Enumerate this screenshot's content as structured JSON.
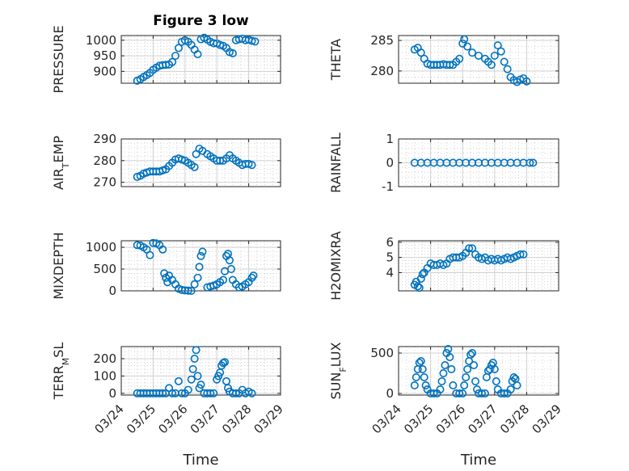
{
  "figure_title": "Figure 3 low",
  "x_axis_label": "Time",
  "x_tick_labels": [
    "03/24",
    "03/25",
    "03/26",
    "03/27",
    "03/28",
    "03/29"
  ],
  "marker_color": "#0072bd",
  "chart_data": [
    {
      "type": "scatter",
      "title": "Figure 3 low",
      "ylabel": "PRESSURE",
      "ylim": [
        862,
        1015
      ],
      "yticks": [
        900,
        950,
        1000
      ],
      "yticklabels": [
        "900",
        "950",
        "1000"
      ],
      "grid": "major+minor",
      "x_range": [
        "03/24",
        "03/29"
      ],
      "points": [
        [
          0.5,
          870
        ],
        [
          0.6,
          875
        ],
        [
          0.7,
          882
        ],
        [
          0.8,
          888
        ],
        [
          0.9,
          895
        ],
        [
          1.0,
          905
        ],
        [
          1.1,
          912
        ],
        [
          1.2,
          918
        ],
        [
          1.3,
          920
        ],
        [
          1.4,
          921
        ],
        [
          1.5,
          922
        ],
        [
          1.6,
          930
        ],
        [
          1.7,
          950
        ],
        [
          1.8,
          975
        ],
        [
          1.9,
          995
        ],
        [
          2.0,
          1000
        ],
        [
          2.1,
          995
        ],
        [
          2.2,
          985
        ],
        [
          2.3,
          970
        ],
        [
          2.4,
          955
        ],
        [
          2.5,
          1003
        ],
        [
          2.6,
          1008
        ],
        [
          2.7,
          1002
        ],
        [
          2.8,
          995
        ],
        [
          2.9,
          990
        ],
        [
          3.0,
          990
        ],
        [
          3.1,
          985
        ],
        [
          3.2,
          982
        ],
        [
          3.3,
          975
        ],
        [
          3.4,
          962
        ],
        [
          3.5,
          958
        ],
        [
          3.6,
          1000
        ],
        [
          3.7,
          1003
        ],
        [
          3.8,
          1005
        ],
        [
          3.9,
          1000
        ],
        [
          4.0,
          1002
        ],
        [
          4.1,
          998
        ],
        [
          4.2,
          996
        ]
      ]
    },
    {
      "type": "scatter",
      "ylabel": "THETA",
      "ylim": [
        278,
        285.8
      ],
      "yticks": [
        280,
        285
      ],
      "yticklabels": [
        "280",
        "285"
      ],
      "grid": "major+minor",
      "points": [
        [
          0.5,
          283.5
        ],
        [
          0.6,
          283.8
        ],
        [
          0.7,
          283.0
        ],
        [
          0.8,
          282.0
        ],
        [
          0.9,
          281.2
        ],
        [
          1.0,
          281.0
        ],
        [
          1.1,
          281.0
        ],
        [
          1.2,
          281.0
        ],
        [
          1.3,
          281.0
        ],
        [
          1.4,
          281.1
        ],
        [
          1.5,
          281.0
        ],
        [
          1.6,
          281.0
        ],
        [
          1.7,
          281.0
        ],
        [
          1.8,
          281.5
        ],
        [
          1.9,
          282.0
        ],
        [
          2.0,
          284.5
        ],
        [
          2.05,
          285.2
        ],
        [
          2.15,
          284.0
        ],
        [
          2.3,
          283.0
        ],
        [
          2.5,
          282.5
        ],
        [
          2.7,
          282.0
        ],
        [
          2.8,
          281.5
        ],
        [
          2.9,
          281.0
        ],
        [
          3.0,
          282.5
        ],
        [
          3.1,
          284.2
        ],
        [
          3.2,
          283.2
        ],
        [
          3.3,
          281.5
        ],
        [
          3.4,
          280.3
        ],
        [
          3.5,
          279.0
        ],
        [
          3.6,
          278.5
        ],
        [
          3.7,
          278.2
        ],
        [
          3.8,
          278.6
        ],
        [
          3.9,
          278.8
        ],
        [
          4.0,
          278.3
        ]
      ]
    },
    {
      "type": "scatter",
      "ylabel": "AIR_TEMP",
      "ylim": [
        268,
        290
      ],
      "yticks": [
        270,
        280,
        290
      ],
      "yticklabels": [
        "270",
        "280",
        "290"
      ],
      "grid": "major+minor",
      "points": [
        [
          0.5,
          272.5
        ],
        [
          0.6,
          273
        ],
        [
          0.7,
          274
        ],
        [
          0.8,
          274.5
        ],
        [
          0.9,
          275
        ],
        [
          1.0,
          275
        ],
        [
          1.1,
          275
        ],
        [
          1.2,
          275
        ],
        [
          1.3,
          275.5
        ],
        [
          1.4,
          276
        ],
        [
          1.5,
          277.5
        ],
        [
          1.6,
          279
        ],
        [
          1.7,
          280.5
        ],
        [
          1.8,
          281
        ],
        [
          1.9,
          280.5
        ],
        [
          2.0,
          280
        ],
        [
          2.1,
          279
        ],
        [
          2.2,
          278
        ],
        [
          2.3,
          277
        ],
        [
          2.35,
          283
        ],
        [
          2.45,
          285.5
        ],
        [
          2.55,
          284.5
        ],
        [
          2.7,
          283
        ],
        [
          2.8,
          282
        ],
        [
          2.9,
          281
        ],
        [
          3.0,
          280
        ],
        [
          3.1,
          280
        ],
        [
          3.2,
          280
        ],
        [
          3.3,
          281
        ],
        [
          3.4,
          282.5
        ],
        [
          3.5,
          281
        ],
        [
          3.6,
          280
        ],
        [
          3.7,
          279
        ],
        [
          3.8,
          278
        ],
        [
          3.9,
          278.5
        ],
        [
          4.0,
          278.5
        ],
        [
          4.1,
          278
        ]
      ]
    },
    {
      "type": "scatter",
      "ylabel": "RAINFALL",
      "ylim": [
        -1,
        1
      ],
      "yticks": [
        -1,
        0,
        1
      ],
      "yticklabels": [
        "-1",
        "0",
        "1"
      ],
      "grid": "major+minor",
      "points": [
        [
          0.5,
          0
        ],
        [
          0.7,
          0
        ],
        [
          0.9,
          0
        ],
        [
          1.1,
          0
        ],
        [
          1.3,
          0
        ],
        [
          1.5,
          0
        ],
        [
          1.7,
          0
        ],
        [
          1.9,
          0
        ],
        [
          2.1,
          0
        ],
        [
          2.3,
          0
        ],
        [
          2.5,
          0
        ],
        [
          2.7,
          0
        ],
        [
          2.9,
          0
        ],
        [
          3.1,
          0
        ],
        [
          3.3,
          0
        ],
        [
          3.5,
          0
        ],
        [
          3.7,
          0
        ],
        [
          3.9,
          0
        ],
        [
          4.1,
          0
        ],
        [
          4.2,
          0
        ]
      ]
    },
    {
      "type": "scatter",
      "ylabel": "MIXDEPTH",
      "ylim": [
        0,
        1150
      ],
      "yticks": [
        0,
        500,
        1000
      ],
      "yticklabels": [
        "0",
        "500",
        "1000"
      ],
      "grid": "major+minor",
      "points": [
        [
          0.5,
          1050
        ],
        [
          0.6,
          1040
        ],
        [
          0.7,
          1000
        ],
        [
          0.8,
          950
        ],
        [
          0.9,
          820
        ],
        [
          1.0,
          1100
        ],
        [
          1.1,
          1090
        ],
        [
          1.2,
          1050
        ],
        [
          1.3,
          950
        ],
        [
          1.35,
          400
        ],
        [
          1.4,
          300
        ],
        [
          1.45,
          200
        ],
        [
          1.5,
          350
        ],
        [
          1.6,
          250
        ],
        [
          1.7,
          150
        ],
        [
          1.8,
          50
        ],
        [
          1.9,
          20
        ],
        [
          2.0,
          10
        ],
        [
          2.1,
          5
        ],
        [
          2.2,
          0
        ],
        [
          2.3,
          150
        ],
        [
          2.4,
          300
        ],
        [
          2.45,
          550
        ],
        [
          2.5,
          800
        ],
        [
          2.55,
          900
        ],
        [
          2.7,
          80
        ],
        [
          2.8,
          100
        ],
        [
          2.9,
          120
        ],
        [
          3.0,
          150
        ],
        [
          3.1,
          200
        ],
        [
          3.2,
          250
        ],
        [
          3.25,
          450
        ],
        [
          3.3,
          800
        ],
        [
          3.35,
          850
        ],
        [
          3.4,
          700
        ],
        [
          3.45,
          500
        ],
        [
          3.5,
          250
        ],
        [
          3.6,
          150
        ],
        [
          3.7,
          80
        ],
        [
          3.8,
          100
        ],
        [
          3.9,
          150
        ],
        [
          4.0,
          200
        ],
        [
          4.1,
          300
        ],
        [
          4.15,
          350
        ]
      ]
    },
    {
      "type": "scatter",
      "ylabel": "H2OMIXRA",
      "ylim": [
        2.8,
        6.1
      ],
      "yticks": [
        4,
        5,
        6
      ],
      "yticklabels": [
        "4",
        "5",
        "6"
      ],
      "grid": "major+minor",
      "points": [
        [
          0.5,
          3.2
        ],
        [
          0.55,
          3.4
        ],
        [
          0.6,
          3.1
        ],
        [
          0.65,
          3.0
        ],
        [
          0.7,
          3.6
        ],
        [
          0.75,
          3.9
        ],
        [
          0.8,
          4.0
        ],
        [
          0.9,
          4.3
        ],
        [
          1.0,
          4.6
        ],
        [
          1.1,
          4.5
        ],
        [
          1.2,
          4.5
        ],
        [
          1.3,
          4.6
        ],
        [
          1.4,
          4.5
        ],
        [
          1.5,
          4.6
        ],
        [
          1.6,
          4.9
        ],
        [
          1.7,
          5.0
        ],
        [
          1.8,
          5.0
        ],
        [
          1.9,
          5.0
        ],
        [
          2.0,
          5.1
        ],
        [
          2.1,
          5.3
        ],
        [
          2.2,
          5.6
        ],
        [
          2.3,
          5.6
        ],
        [
          2.4,
          5.2
        ],
        [
          2.5,
          5.0
        ],
        [
          2.6,
          4.9
        ],
        [
          2.7,
          5.0
        ],
        [
          2.8,
          4.8
        ],
        [
          2.9,
          4.9
        ],
        [
          3.0,
          4.8
        ],
        [
          3.1,
          4.9
        ],
        [
          3.2,
          4.8
        ],
        [
          3.3,
          4.9
        ],
        [
          3.4,
          5.0
        ],
        [
          3.5,
          4.9
        ],
        [
          3.6,
          5.0
        ],
        [
          3.7,
          5.1
        ],
        [
          3.8,
          5.2
        ],
        [
          3.9,
          5.2
        ]
      ]
    },
    {
      "type": "scatter",
      "ylabel": "TERR_MSL",
      "ylim": [
        -10,
        270
      ],
      "yticks": [
        0,
        100,
        200
      ],
      "yticklabels": [
        "0",
        "100",
        "200"
      ],
      "grid": "major+minor",
      "points": [
        [
          0.5,
          0
        ],
        [
          0.6,
          0
        ],
        [
          0.7,
          0
        ],
        [
          0.8,
          0
        ],
        [
          0.9,
          0
        ],
        [
          1.0,
          0
        ],
        [
          1.1,
          0
        ],
        [
          1.2,
          0
        ],
        [
          1.3,
          0
        ],
        [
          1.4,
          0
        ],
        [
          1.5,
          30
        ],
        [
          1.6,
          0
        ],
        [
          1.7,
          0
        ],
        [
          1.8,
          70
        ],
        [
          1.9,
          0
        ],
        [
          2.0,
          0
        ],
        [
          2.1,
          20
        ],
        [
          2.2,
          80
        ],
        [
          2.25,
          140
        ],
        [
          2.3,
          200
        ],
        [
          2.35,
          250
        ],
        [
          2.4,
          100
        ],
        [
          2.45,
          30
        ],
        [
          2.5,
          50
        ],
        [
          2.6,
          0
        ],
        [
          2.7,
          0
        ],
        [
          2.8,
          0
        ],
        [
          2.9,
          0
        ],
        [
          3.0,
          80
        ],
        [
          3.05,
          100
        ],
        [
          3.1,
          120
        ],
        [
          3.15,
          160
        ],
        [
          3.2,
          175
        ],
        [
          3.25,
          180
        ],
        [
          3.3,
          70
        ],
        [
          3.35,
          30
        ],
        [
          3.4,
          10
        ],
        [
          3.5,
          0
        ],
        [
          3.6,
          0
        ],
        [
          3.7,
          0
        ],
        [
          3.8,
          20
        ],
        [
          3.9,
          0
        ],
        [
          4.0,
          10
        ],
        [
          4.1,
          0
        ]
      ]
    },
    {
      "type": "scatter",
      "ylabel": "SUN_FLUX",
      "ylim": [
        -20,
        580
      ],
      "yticks": [
        0,
        500
      ],
      "yticklabels": [
        "0",
        "500"
      ],
      "grid": "major+minor",
      "points": [
        [
          0.5,
          100
        ],
        [
          0.55,
          200
        ],
        [
          0.6,
          300
        ],
        [
          0.65,
          380
        ],
        [
          0.7,
          400
        ],
        [
          0.75,
          300
        ],
        [
          0.8,
          200
        ],
        [
          0.85,
          100
        ],
        [
          0.9,
          50
        ],
        [
          1.0,
          0
        ],
        [
          1.1,
          0
        ],
        [
          1.2,
          0
        ],
        [
          1.3,
          50
        ],
        [
          1.35,
          150
        ],
        [
          1.4,
          250
        ],
        [
          1.45,
          350
        ],
        [
          1.5,
          500
        ],
        [
          1.55,
          550
        ],
        [
          1.6,
          450
        ],
        [
          1.65,
          300
        ],
        [
          1.7,
          100
        ],
        [
          1.8,
          0
        ],
        [
          1.9,
          0
        ],
        [
          2.0,
          0
        ],
        [
          2.05,
          100
        ],
        [
          2.1,
          200
        ],
        [
          2.15,
          300
        ],
        [
          2.2,
          400
        ],
        [
          2.25,
          480
        ],
        [
          2.3,
          500
        ],
        [
          2.35,
          350
        ],
        [
          2.4,
          150
        ],
        [
          2.45,
          50
        ],
        [
          2.5,
          0
        ],
        [
          2.6,
          0
        ],
        [
          2.7,
          0
        ],
        [
          2.75,
          200
        ],
        [
          2.8,
          280
        ],
        [
          2.85,
          300
        ],
        [
          2.9,
          350
        ],
        [
          2.95,
          380
        ],
        [
          3.0,
          300
        ],
        [
          3.05,
          150
        ],
        [
          3.1,
          50
        ],
        [
          3.2,
          0
        ],
        [
          3.3,
          0
        ],
        [
          3.4,
          0
        ],
        [
          3.5,
          50
        ],
        [
          3.55,
          150
        ],
        [
          3.6,
          200
        ],
        [
          3.65,
          180
        ],
        [
          3.7,
          100
        ]
      ]
    }
  ]
}
